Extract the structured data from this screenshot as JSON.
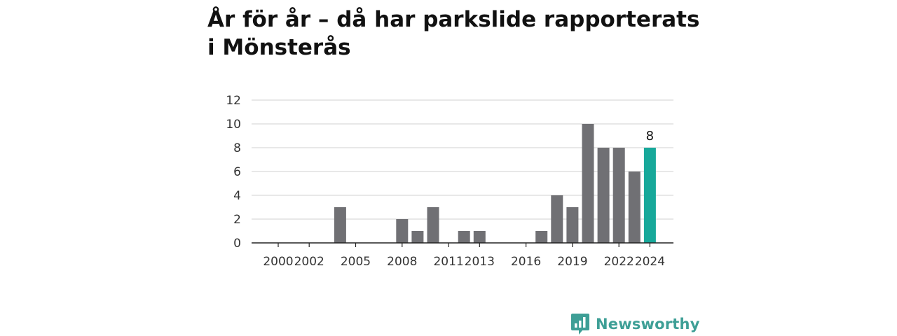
{
  "title": "År för år – då har parkslide rapporterats i Mönsterås",
  "colors": {
    "bar": "#707074",
    "highlight": "#17a89a",
    "grid": "#d9d9d9",
    "axis": "#222222",
    "brand": "#3e9f96"
  },
  "brand": {
    "name": "Newsworthy",
    "icon": "newsworthy-logo-icon"
  },
  "chart_data": {
    "type": "bar",
    "title": "År för år – då har parkslide rapporterats i Mönsterås",
    "xlabel": "",
    "ylabel": "",
    "categories": [
      2000,
      2001,
      2002,
      2003,
      2004,
      2005,
      2006,
      2007,
      2008,
      2009,
      2010,
      2011,
      2012,
      2013,
      2014,
      2015,
      2016,
      2017,
      2018,
      2019,
      2020,
      2021,
      2022,
      2023,
      2024
    ],
    "values": [
      0,
      0,
      0,
      0,
      3,
      0,
      0,
      0,
      2,
      1,
      3,
      0,
      1,
      1,
      0,
      0,
      0,
      1,
      4,
      3,
      10,
      8,
      8,
      6,
      8
    ],
    "highlight_category": 2024,
    "highlight_label": "8",
    "ylim": [
      0,
      12
    ],
    "yticks": [
      0,
      2,
      4,
      6,
      8,
      10,
      12
    ],
    "xtick_labels": [
      "2000",
      "2002",
      "2005",
      "2008",
      "2011",
      "2013",
      "2016",
      "2019",
      "2022",
      "2024"
    ],
    "xtick_values": [
      2000,
      2002,
      2005,
      2008,
      2011,
      2013,
      2016,
      2019,
      2022,
      2024
    ],
    "grid": true,
    "legend": "none"
  }
}
